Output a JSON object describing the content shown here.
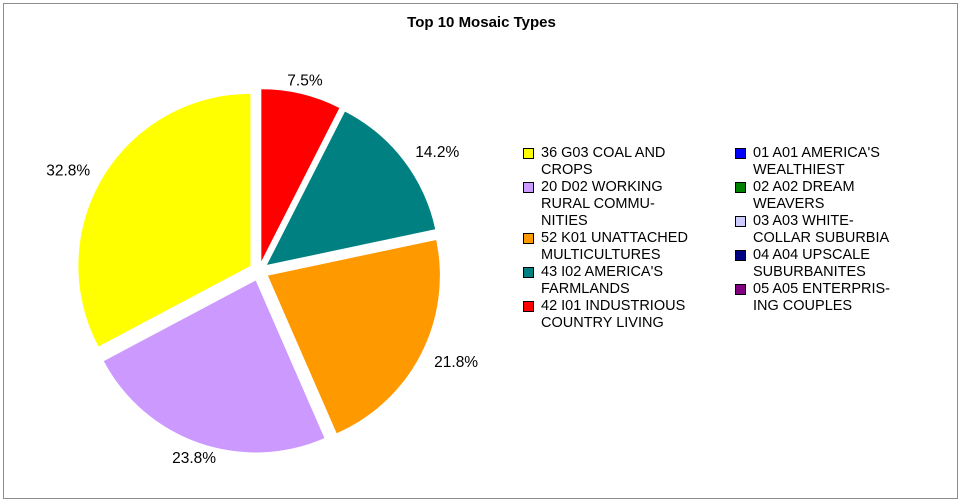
{
  "chart_data": {
    "type": "pie",
    "title": "Top 10 Mosaic Types",
    "legend_position": "right",
    "slices": [
      {
        "label": "42 I01 INDUSTRIOUS\nCOUNTRY LIVING",
        "value": 7.5,
        "display": "7.5%",
        "color": "#ff0000"
      },
      {
        "label": "43 I02 AMERICA'S\nFARMLANDS",
        "value": 14.2,
        "display": "14.2%",
        "color": "#008080"
      },
      {
        "label": "52 K01 UNATTACHED\nMULTICULTURES",
        "value": 21.8,
        "display": "21.8%",
        "color": "#ff9900"
      },
      {
        "label": "20 D02 WORKING\nRURAL COMMU-\nNITIES",
        "value": 23.8,
        "display": "23.8%",
        "color": "#cc99ff"
      },
      {
        "label": "36 G03 COAL AND\nCROPS",
        "value": 32.8,
        "display": "32.8%",
        "color": "#ffff00"
      }
    ],
    "legend_left": [
      {
        "label": "36 G03 COAL AND\nCROPS",
        "color": "#ffff00"
      },
      {
        "label": "20 D02 WORKING\nRURAL COMMU-\nNITIES",
        "color": "#cc99ff"
      },
      {
        "label": "52 K01 UNATTACHED\nMULTICULTURES",
        "color": "#ff9900"
      },
      {
        "label": "43 I02 AMERICA'S\nFARMLANDS",
        "color": "#008080"
      },
      {
        "label": "42 I01 INDUSTRIOUS\nCOUNTRY LIVING",
        "color": "#ff0000"
      }
    ],
    "legend_right": [
      {
        "label": "01 A01 AMERICA'S\nWEALTHIEST",
        "color": "#0000ff"
      },
      {
        "label": "02 A02 DREAM\nWEAVERS",
        "color": "#008000"
      },
      {
        "label": "03 A03 WHITE-\nCOLLAR SUBURBIA",
        "color": "#ccccff"
      },
      {
        "label": "04 A04 UPSCALE\nSUBURBANITES",
        "color": "#000080"
      },
      {
        "label": "05 A05 ENTERPRIS-\nING COUPLES",
        "color": "#800080"
      }
    ]
  }
}
